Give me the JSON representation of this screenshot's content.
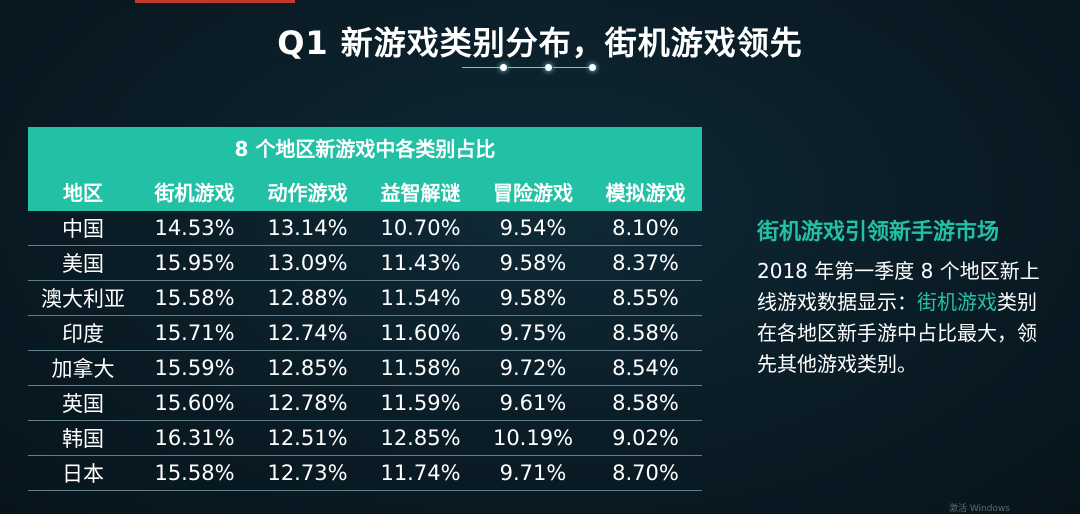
{
  "title": "Q1 新游戏类别分布，街机游戏领先",
  "colors": {
    "accent": "#22c1a6",
    "background": "#0a1c26",
    "top_bar": "#c0392b"
  },
  "table": {
    "caption": "8 个地区新游戏中各类别占比",
    "headers": [
      "地区",
      "街机游戏",
      "动作游戏",
      "益智解谜",
      "冒险游戏",
      "模拟游戏"
    ],
    "rows": [
      [
        "中国",
        "14.53%",
        "13.14%",
        "10.70%",
        "9.54%",
        "8.10%"
      ],
      [
        "美国",
        "15.95%",
        "13.09%",
        "11.43%",
        "9.58%",
        "8.37%"
      ],
      [
        "澳大利亚",
        "15.58%",
        "12.88%",
        "11.54%",
        "9.58%",
        "8.55%"
      ],
      [
        "印度",
        "15.71%",
        "12.74%",
        "11.60%",
        "9.75%",
        "8.58%"
      ],
      [
        "加拿大",
        "15.59%",
        "12.85%",
        "11.58%",
        "9.72%",
        "8.54%"
      ],
      [
        "英国",
        "15.60%",
        "12.78%",
        "11.59%",
        "9.61%",
        "8.58%"
      ],
      [
        "韩国",
        "16.31%",
        "12.51%",
        "12.85%",
        "10.19%",
        "9.02%"
      ],
      [
        "日本",
        "15.58%",
        "12.73%",
        "11.74%",
        "9.71%",
        "8.70%"
      ]
    ]
  },
  "side": {
    "heading": "街机游戏引领新手游市场",
    "body_pre": "2018 年第一季度 8 个地区新上线游戏数据显示：",
    "body_highlight": "街机游戏",
    "body_post": "类别在各地区新手游中占比最大，领先其他游戏类别。"
  },
  "watermark": "激活 Windows"
}
